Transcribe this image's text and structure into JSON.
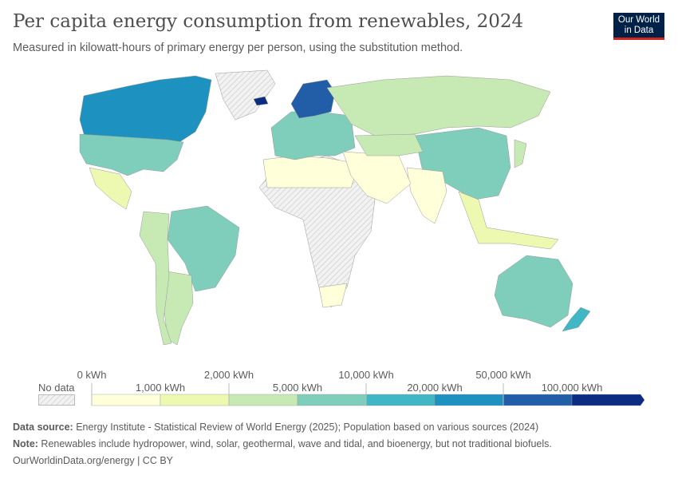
{
  "title": "Per capita energy consumption from renewables, 2024",
  "subtitle": "Measured in kilowatt-hours of primary energy per person, using the substitution method.",
  "logo": {
    "line1": "Our World",
    "line2": "in Data",
    "bg": "#002147",
    "accent": "#ce261e"
  },
  "legend": {
    "no_data_label": "No data",
    "top_labels": [
      "0 kWh",
      "2,000 kWh",
      "10,000 kWh",
      "50,000 kWh"
    ],
    "bottom_labels": [
      "1,000 kWh",
      "5,000 kWh",
      "20,000 kWh",
      "100,000 kWh"
    ],
    "bins": [
      {
        "range": "0–1,000 kWh",
        "color": "#ffffd9"
      },
      {
        "range": "1,000–2,000 kWh",
        "color": "#edf8b1"
      },
      {
        "range": "2,000–5,000 kWh",
        "color": "#c7e9b4"
      },
      {
        "range": "5,000–10,000 kWh",
        "color": "#7fcdbb"
      },
      {
        "range": "10,000–20,000 kWh",
        "color": "#41b6c4"
      },
      {
        "range": "20,000–50,000 kWh",
        "color": "#1d91c0"
      },
      {
        "range": "50,000–100,000 kWh",
        "color": "#225ea8"
      },
      {
        "range": ">100,000 kWh",
        "color": "#0c2c84"
      }
    ]
  },
  "regions": [
    {
      "name": "Canada",
      "bin": 5
    },
    {
      "name": "United States",
      "bin": 3
    },
    {
      "name": "Mexico",
      "bin": 1
    },
    {
      "name": "Greenland",
      "bin": -1
    },
    {
      "name": "Brazil",
      "bin": 3
    },
    {
      "name": "Argentina",
      "bin": 2
    },
    {
      "name": "Andes",
      "bin": 2
    },
    {
      "name": "Africa",
      "bin": -1
    },
    {
      "name": "South Africa",
      "bin": 0
    },
    {
      "name": "North Africa",
      "bin": 0
    },
    {
      "name": "Europe",
      "bin": 3
    },
    {
      "name": "Scandinavia",
      "bin": 6
    },
    {
      "name": "Iceland",
      "bin": 7
    },
    {
      "name": "Russia",
      "bin": 2
    },
    {
      "name": "China",
      "bin": 3
    },
    {
      "name": "India",
      "bin": 0
    },
    {
      "name": "Middle East",
      "bin": 0
    },
    {
      "name": "Central Asia",
      "bin": 2
    },
    {
      "name": "Southeast Asia",
      "bin": 1
    },
    {
      "name": "Japan",
      "bin": 2
    },
    {
      "name": "Australia",
      "bin": 3
    },
    {
      "name": "New Zealand",
      "bin": 4
    }
  ],
  "footer": {
    "source_label": "Data source:",
    "source": " Energy Institute - Statistical Review of World Energy (2025); Population based on various sources (2024)",
    "note_label": "Note:",
    "note": " Renewables include hydropower, wind, solar, geothermal, wave and tidal, and bioenergy, but not traditional biofuels.",
    "url": "OurWorldinData.org/energy | CC BY"
  }
}
